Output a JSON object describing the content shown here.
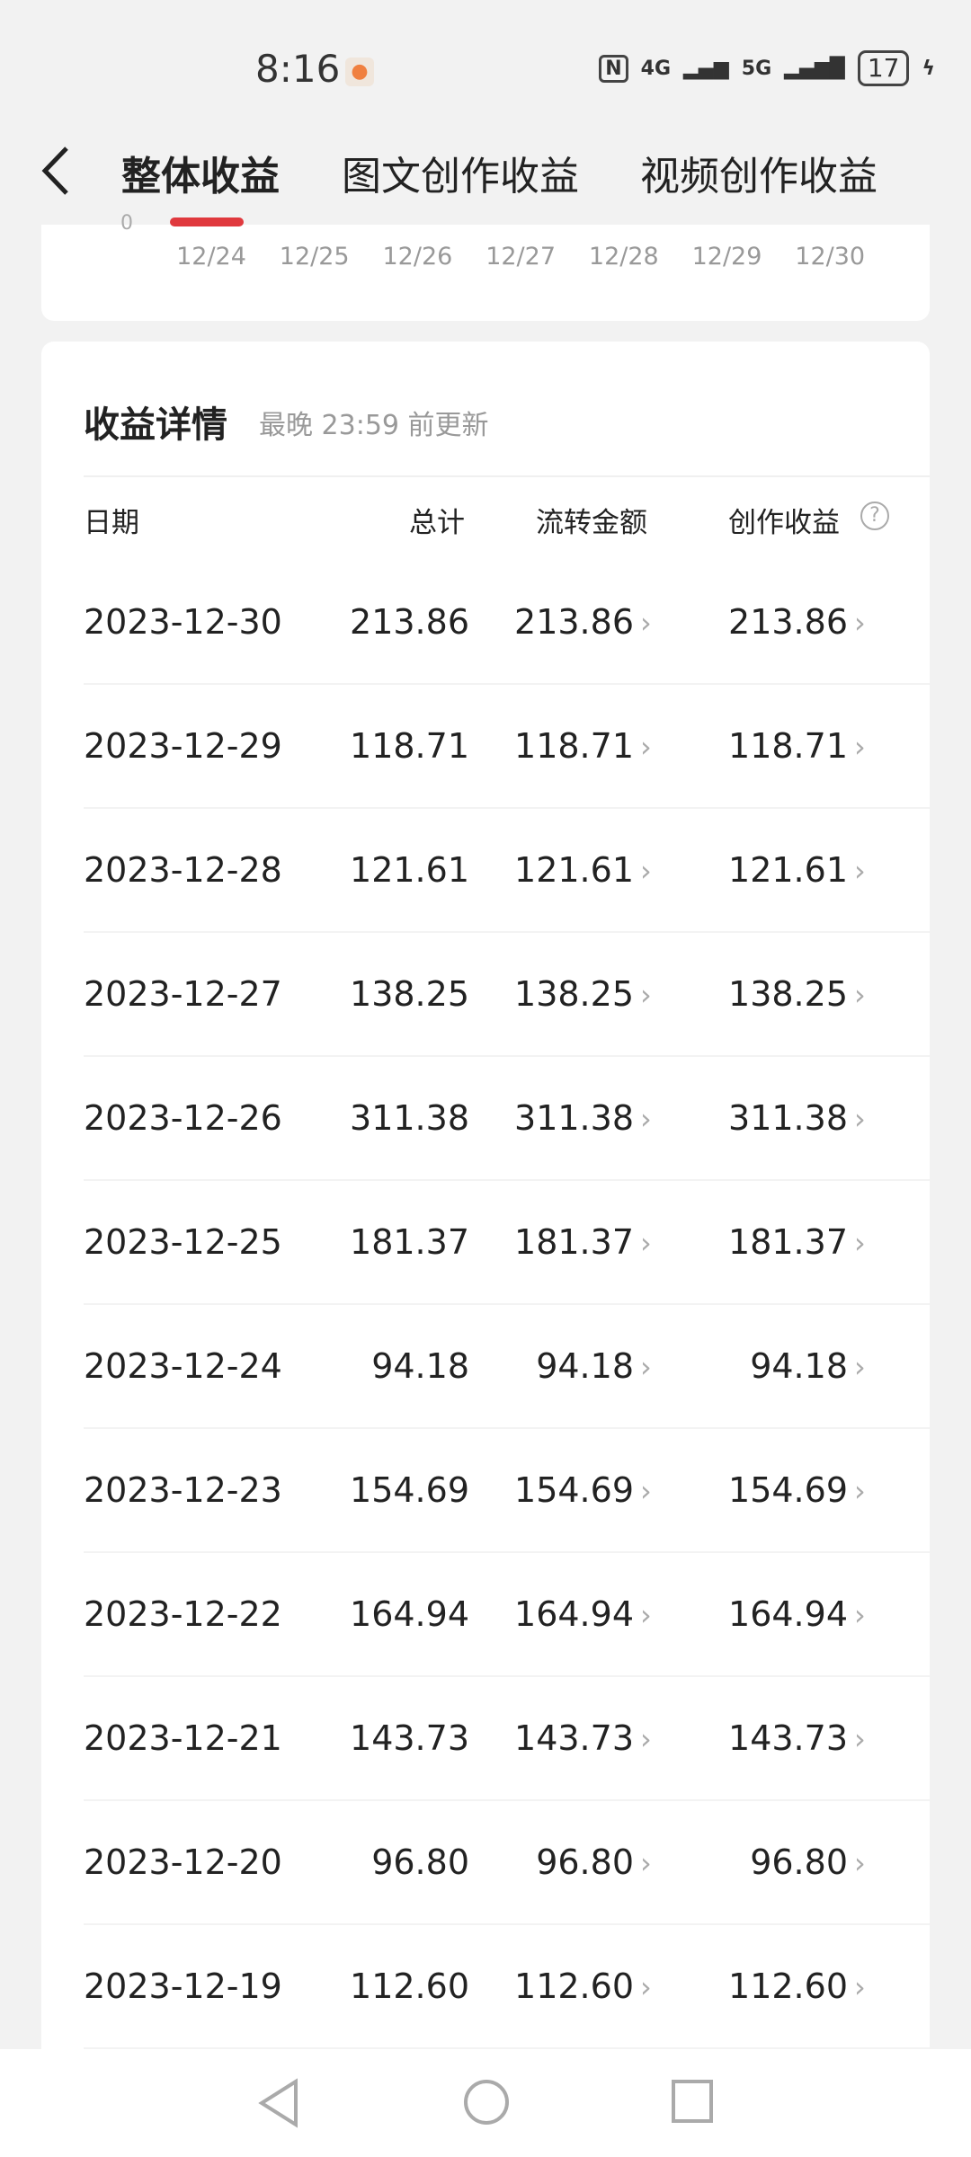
{
  "status_bar": {
    "time": "8:16",
    "network1": "4G",
    "network2": "5G",
    "battery": "17",
    "icons": [
      "fire-icon",
      "nfc-icon",
      "signal-icon",
      "battery-icon",
      "charging-icon"
    ]
  },
  "header": {
    "back_icon": "chevron-left-icon",
    "tabs": [
      {
        "label": "整体收益",
        "active": true
      },
      {
        "label": "图文创作收益"
      },
      {
        "label": "视频创作收益"
      }
    ],
    "accent": "#e0393e"
  },
  "chart_partial": {
    "y_tick": "0",
    "x_ticks": [
      "12/24",
      "12/25",
      "12/26",
      "12/27",
      "12/28",
      "12/29",
      "12/30"
    ]
  },
  "details": {
    "title": "收益详情",
    "subtitle": "最晚 23:59 前更新",
    "columns": [
      "日期",
      "总计",
      "流转金额",
      "创作收益"
    ],
    "rows": [
      [
        "2023-12-30",
        "213.86",
        "213.86",
        "213.86"
      ],
      [
        "2023-12-29",
        "118.71",
        "118.71",
        "118.71"
      ],
      [
        "2023-12-28",
        "121.61",
        "121.61",
        "121.61"
      ],
      [
        "2023-12-27",
        "138.25",
        "138.25",
        "138.25"
      ],
      [
        "2023-12-26",
        "311.38",
        "311.38",
        "311.38"
      ],
      [
        "2023-12-25",
        "181.37",
        "181.37",
        "181.37"
      ],
      [
        "2023-12-24",
        "94.18",
        "94.18",
        "94.18"
      ],
      [
        "2023-12-23",
        "154.69",
        "154.69",
        "154.69"
      ],
      [
        "2023-12-22",
        "164.94",
        "164.94",
        "164.94"
      ],
      [
        "2023-12-21",
        "143.73",
        "143.73",
        "143.73"
      ],
      [
        "2023-12-20",
        "96.80",
        "96.80",
        "96.80"
      ],
      [
        "2023-12-19",
        "112.60",
        "112.60",
        "112.60"
      ]
    ]
  },
  "nav_bar": [
    "back-triangle-icon",
    "home-circle-icon",
    "recents-square-icon"
  ]
}
